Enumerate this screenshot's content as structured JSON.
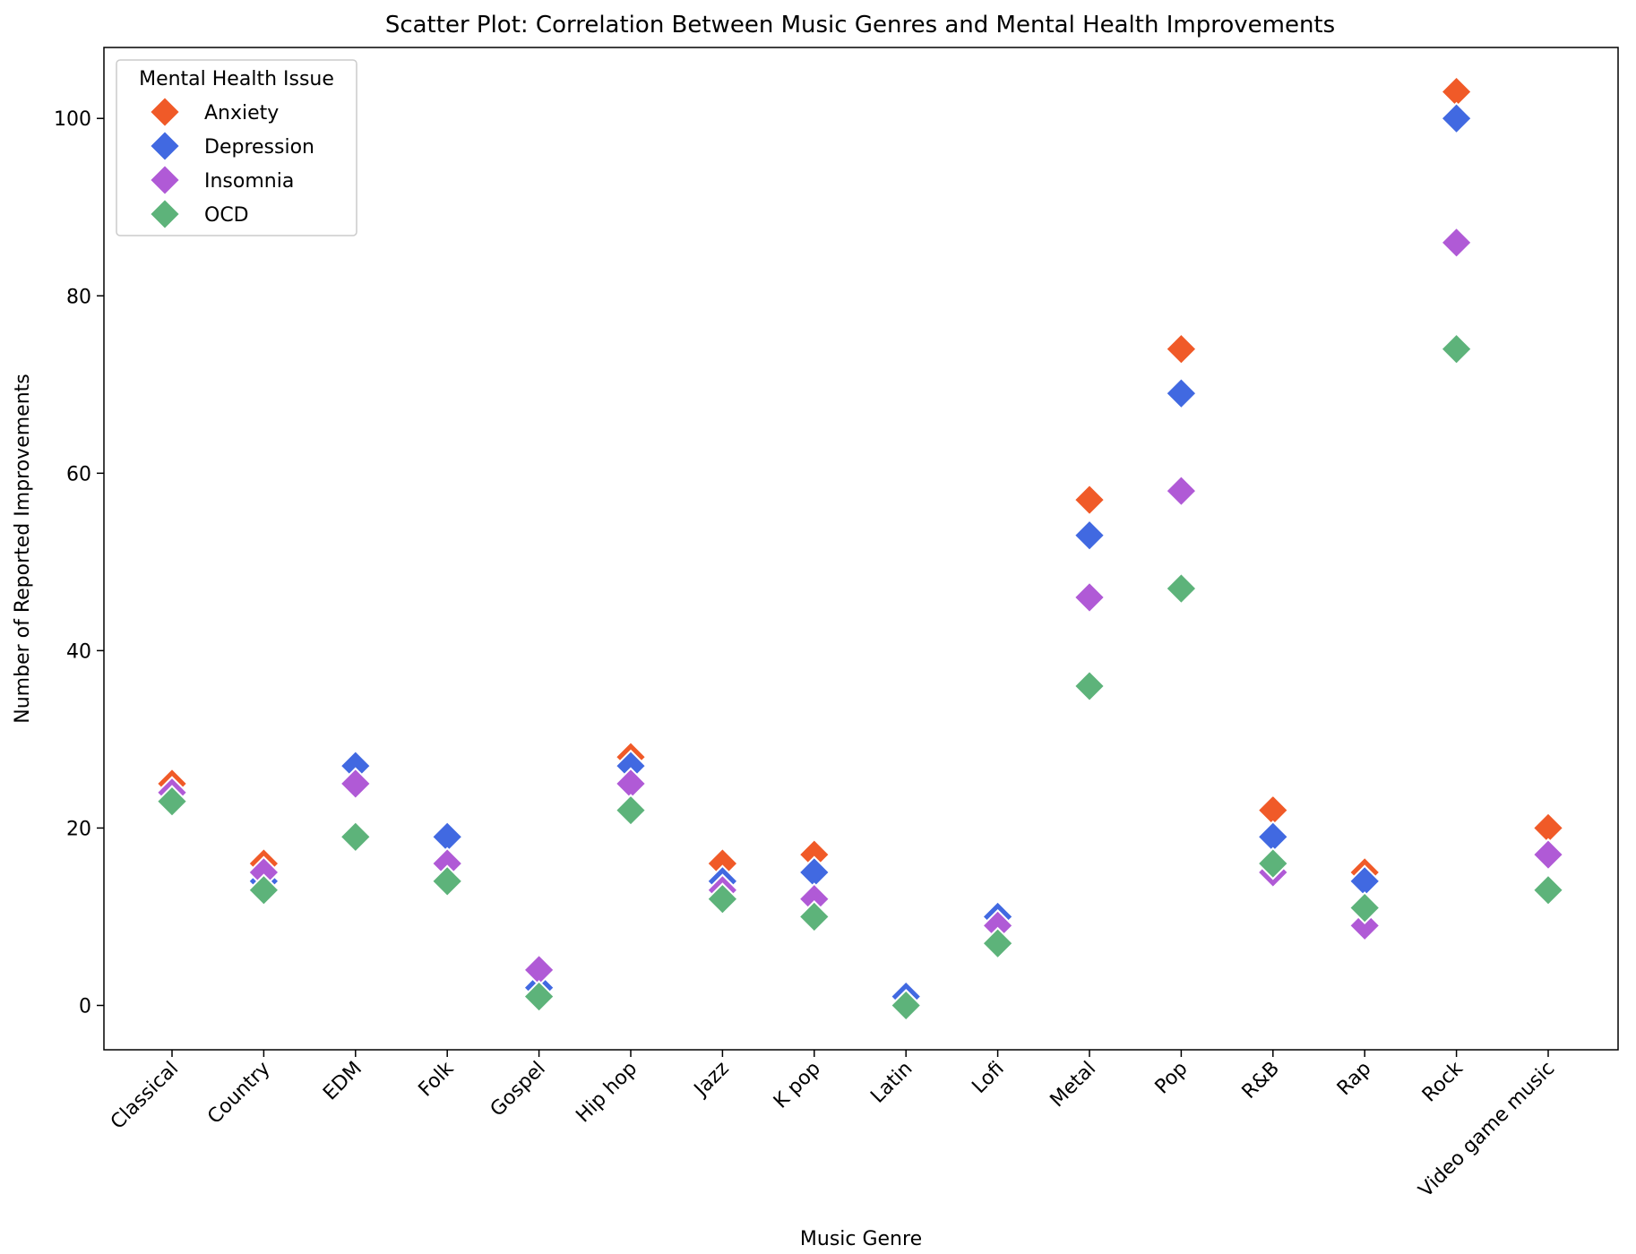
{
  "chart_data": {
    "type": "scatter",
    "title": "Scatter Plot: Correlation Between Music Genres and Mental Health Improvements",
    "xlabel": "Music Genre",
    "ylabel": "Number of Reported Improvements",
    "categories": [
      "Classical",
      "Country",
      "EDM",
      "Folk",
      "Gospel",
      "Hip hop",
      "Jazz",
      "K pop",
      "Latin",
      "Lofi",
      "Metal",
      "Pop",
      "R&B",
      "Rap",
      "Rock",
      "Video game music"
    ],
    "ylim": [
      -5,
      108
    ],
    "yticks": [
      0,
      20,
      40,
      60,
      80,
      100
    ],
    "grid": false,
    "marker": "diamond",
    "legend": {
      "title": "Mental Health Issue",
      "placement": "top-left"
    },
    "series": [
      {
        "name": "Anxiety",
        "color": "#F05A28",
        "values": [
          25,
          16,
          27,
          19,
          2,
          28,
          16,
          17,
          1,
          10,
          57,
          74,
          22,
          15,
          103,
          20
        ]
      },
      {
        "name": "Depression",
        "color": "#4169E1",
        "values": [
          24,
          14,
          27,
          19,
          2,
          27,
          14,
          15,
          1,
          10,
          53,
          69,
          19,
          14,
          100,
          17
        ]
      },
      {
        "name": "Insomnia",
        "color": "#B05AD6",
        "values": [
          24,
          15,
          25,
          16,
          4,
          25,
          13,
          12,
          0,
          9,
          46,
          58,
          15,
          9,
          86,
          17
        ]
      },
      {
        "name": "OCD",
        "color": "#5DB37A",
        "values": [
          23,
          13,
          19,
          14,
          1,
          22,
          12,
          10,
          0,
          7,
          36,
          47,
          16,
          11,
          74,
          13
        ]
      }
    ]
  }
}
